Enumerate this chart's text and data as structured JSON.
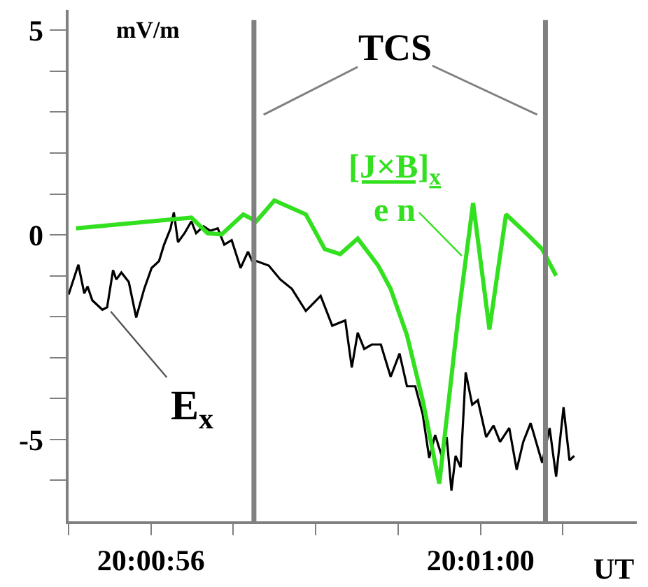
{
  "chart_data": {
    "type": "line",
    "xlim": [
      20.015278,
      20.017194
    ],
    "ylim": [
      -7,
      5.5
    ],
    "xticks": [
      {
        "value": 20.015278,
        "label": null
      },
      {
        "value": 20.015556,
        "label": "20:00:56"
      },
      {
        "value": 20.015833,
        "label": null
      },
      {
        "value": 20.016111,
        "label": null
      },
      {
        "value": 20.016389,
        "label": null
      },
      {
        "value": 20.016667,
        "label": "20:01:00"
      },
      {
        "value": 20.016944,
        "label": null
      }
    ],
    "yticks": [
      {
        "value": -6,
        "label": null
      },
      -5,
      {
        "value": -4,
        "label": null
      },
      {
        "value": -3,
        "label": null
      },
      {
        "value": -2,
        "label": null
      },
      {
        "value": -1,
        "label": null
      },
      0,
      {
        "value": 1,
        "label": null
      },
      {
        "value": 2,
        "label": null
      },
      {
        "value": 3,
        "label": null
      },
      {
        "value": 4,
        "label": null
      },
      5
    ],
    "xlabel": "UT",
    "legend": false,
    "annotations": [
      "mV/m",
      "TCS"
    ],
    "ref_lines": [
      {
        "axis": "x",
        "value": 20.015903,
        "color": "#808080"
      },
      {
        "axis": "x",
        "value": 20.016886,
        "color": "#808080"
      }
    ],
    "series": [
      {
        "name": "E$_{x}$",
        "color": "#000000",
        "x": [
          20.015278,
          20.015311,
          20.015331,
          20.015342,
          20.015358,
          20.015392,
          20.015408,
          20.015428,
          20.015439,
          20.015456,
          20.015481,
          20.015506,
          20.015533,
          20.015558,
          20.015583,
          20.0156,
          20.015622,
          20.015633,
          20.015647,
          20.015669,
          20.015692,
          20.015708,
          20.015733,
          20.015756,
          20.015781,
          20.015803,
          20.015828,
          20.015858,
          20.015883,
          20.015897,
          20.015911,
          20.015953,
          20.015992,
          20.016031,
          20.016078,
          20.016128,
          20.016167,
          20.016211,
          20.016233,
          20.016253,
          20.016275,
          20.0163,
          20.016331,
          20.016364,
          20.016394,
          20.016419,
          20.016447,
          20.016472,
          20.016494,
          20.016514,
          20.016536,
          20.016553,
          20.016569,
          20.016583,
          20.0166,
          20.016617,
          20.016639,
          20.016658,
          20.016686,
          20.016711,
          20.016733,
          20.016764,
          20.016789,
          20.016811,
          20.016836,
          20.016875,
          20.0169,
          20.016922,
          20.016947,
          20.016967,
          20.016983
        ],
        "values": [
          -1.46,
          -0.73,
          -1.43,
          -1.26,
          -1.6,
          -1.83,
          -1.77,
          -0.86,
          -1.09,
          -0.92,
          -1.15,
          -2.02,
          -1.32,
          -0.81,
          -0.64,
          -0.24,
          0.16,
          0.55,
          -0.18,
          0.04,
          0.33,
          0.04,
          0.21,
          0.1,
          0.16,
          -0.24,
          -0.13,
          -0.81,
          -0.41,
          -0.64,
          -0.64,
          -0.75,
          -1.09,
          -1.32,
          -1.86,
          -1.49,
          -2.22,
          -2.09,
          -3.24,
          -2.39,
          -2.79,
          -2.68,
          -2.68,
          -3.47,
          -2.9,
          -3.7,
          -3.7,
          -4.38,
          -5.45,
          -4.89,
          -5.4,
          -4.94,
          -6.25,
          -5.4,
          -5.68,
          -3.36,
          -4.15,
          -4.04,
          -4.94,
          -4.66,
          -5.06,
          -4.72,
          -5.74,
          -5.06,
          -4.6,
          -5.57,
          -4.72,
          -5.91,
          -4.21,
          -5.51,
          -5.4
        ]
      },
      {
        "name": "[J×B]$_{x}$\ne n",
        "color": "#33e01f",
        "x": [
          20.015303,
          20.015692,
          20.015747,
          20.015794,
          20.015867,
          20.015911,
          20.015972,
          20.016078,
          20.016142,
          20.016194,
          20.016253,
          20.016322,
          20.016364,
          20.016419,
          20.016472,
          20.016528,
          20.016592,
          20.016642,
          20.016697,
          20.016753,
          20.016828,
          20.016875,
          20.016922
        ],
        "values": [
          0.16,
          0.42,
          0.04,
          0.01,
          0.5,
          0.33,
          0.84,
          0.5,
          -0.35,
          -0.47,
          -0.09,
          -0.75,
          -1.32,
          -2.45,
          -4.04,
          -6.08,
          -2.0,
          0.78,
          -2.31,
          0.5,
          -0.01,
          -0.35,
          -1.0
        ]
      }
    ]
  }
}
